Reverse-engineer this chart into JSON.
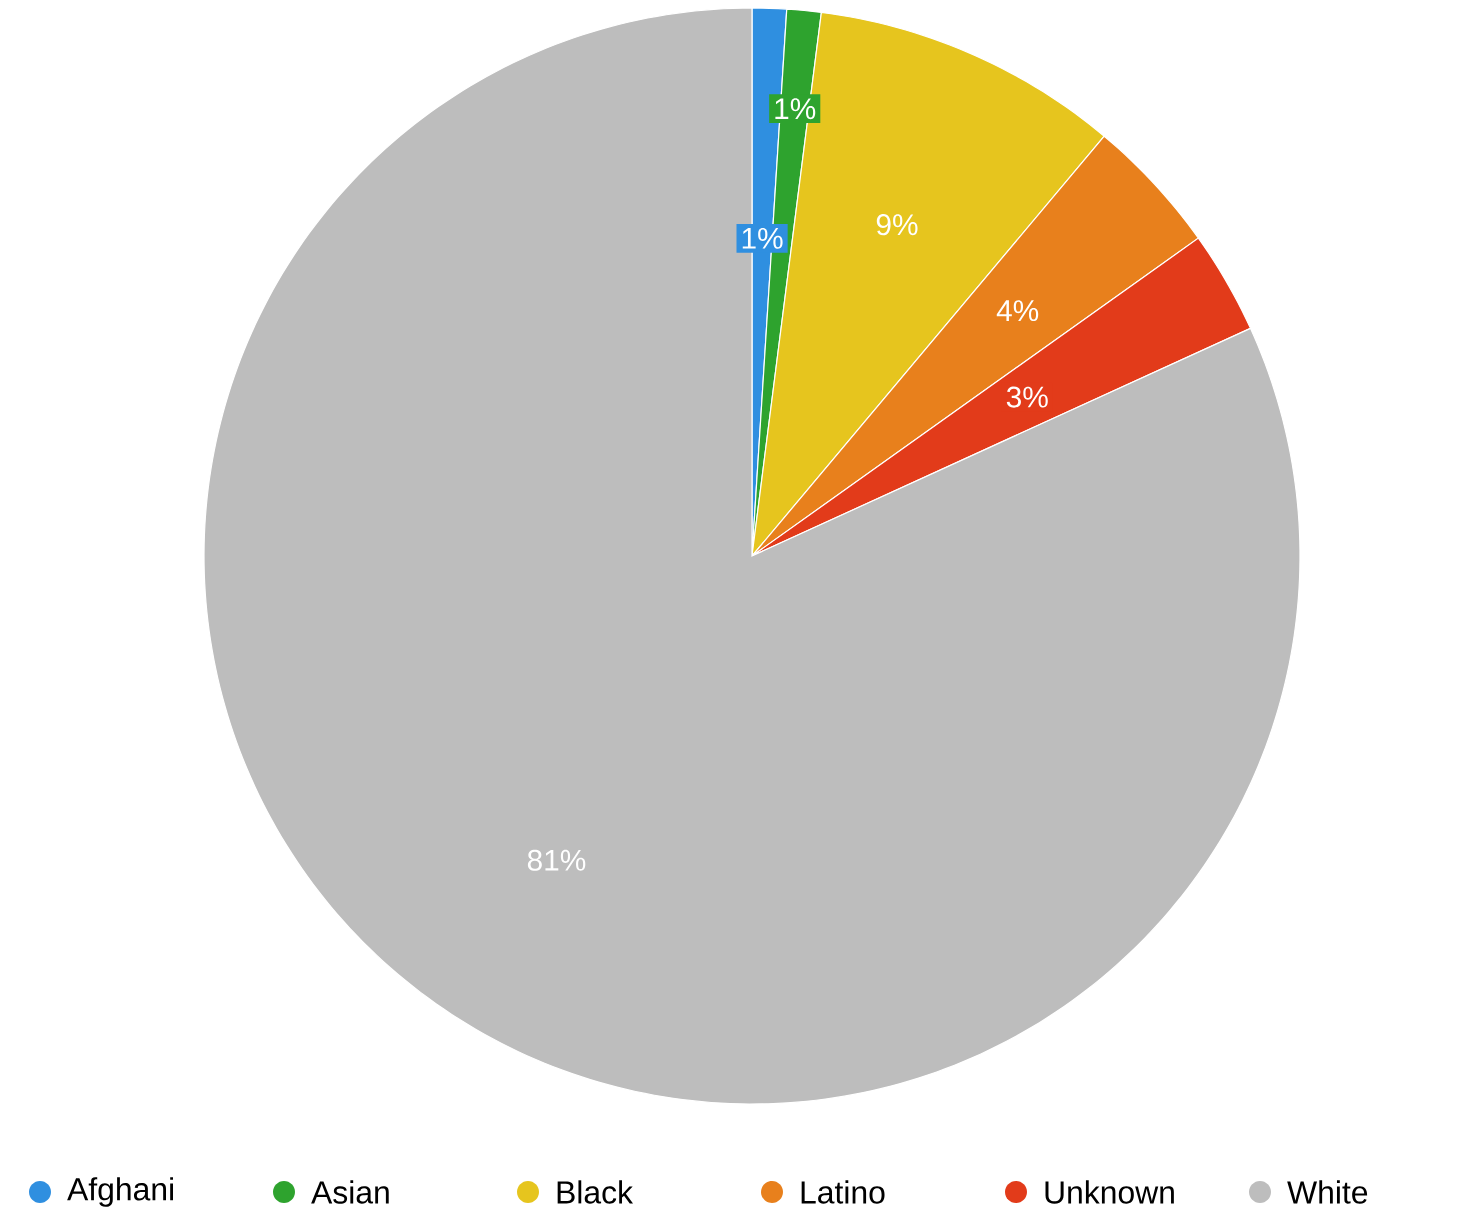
{
  "chart_data": {
    "type": "pie",
    "categories": [
      "Afghani",
      "Asian",
      "Black",
      "Latino",
      "Unknown",
      "White"
    ],
    "values": [
      1,
      1,
      9,
      4,
      3,
      81
    ],
    "value_labels": [
      "1%",
      "1%",
      "9%",
      "4%",
      "3%",
      "81%"
    ],
    "colors": [
      "#2f8fe0",
      "#2ea32e",
      "#e6c51e",
      "#e8801c",
      "#e23b1a",
      "#bdbdbd"
    ],
    "legend": "bottom"
  }
}
